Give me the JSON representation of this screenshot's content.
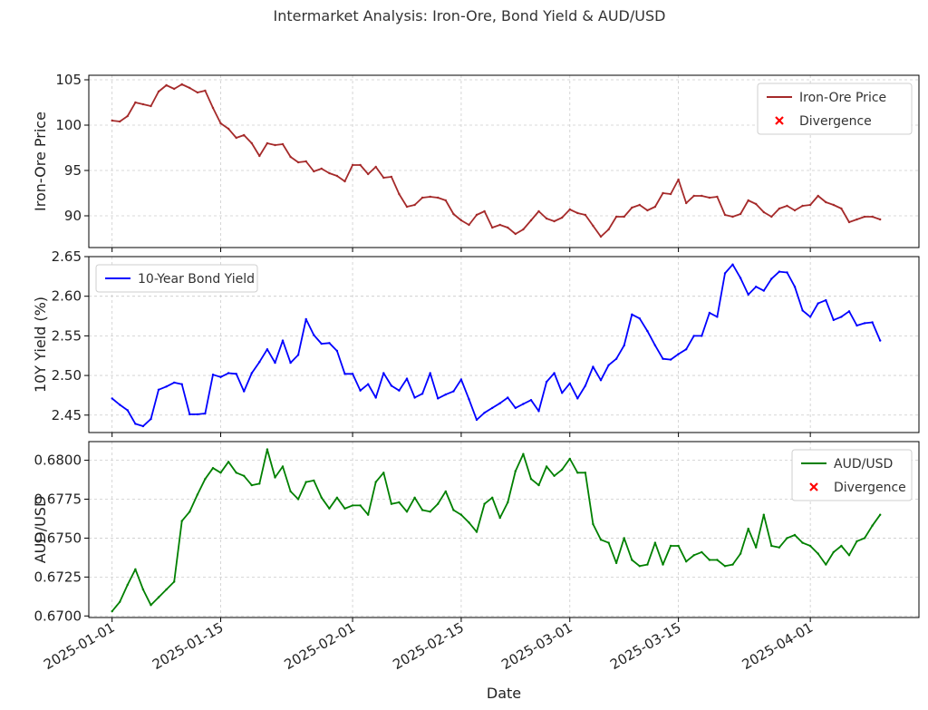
{
  "title": "Intermarket Analysis: Iron-Ore, Bond Yield & AUD/USD",
  "xlabel": "Date",
  "x_ticks": [
    "2025-01-01",
    "2025-01-15",
    "2025-02-01",
    "2025-02-15",
    "2025-03-01",
    "2025-03-15",
    "2025-04-01"
  ],
  "colors": {
    "iron": "#a52a2a",
    "bond": "#0000ff",
    "aud": "#008000",
    "divergence": "#ff0000"
  },
  "chart_data": [
    {
      "type": "line",
      "name": "iron",
      "ylabel": "Iron-Ore Price",
      "ylim": [
        86.5,
        105.5
      ],
      "yticks": [
        90,
        95,
        100,
        105
      ],
      "ytick_labels": [
        "90",
        "95",
        "100",
        "105"
      ],
      "legend": {
        "placement": "top-right",
        "line": "Iron-Ore Price",
        "marker": "Divergence"
      },
      "x_start": "2025-01-01",
      "x": [
        "2025-01-01",
        "2025-01-02",
        "2025-01-03",
        "2025-01-04",
        "2025-01-05",
        "2025-01-06",
        "2025-01-07",
        "2025-01-08",
        "2025-01-09",
        "2025-01-10",
        "2025-01-11",
        "2025-01-12",
        "2025-01-13",
        "2025-01-14",
        "2025-01-15",
        "2025-01-16",
        "2025-01-17",
        "2025-01-18",
        "2025-01-19",
        "2025-01-20",
        "2025-01-21",
        "2025-01-22",
        "2025-01-23",
        "2025-01-24",
        "2025-01-25",
        "2025-01-26",
        "2025-01-27",
        "2025-01-28",
        "2025-01-29",
        "2025-01-30",
        "2025-01-31",
        "2025-02-01",
        "2025-02-02",
        "2025-02-03",
        "2025-02-04",
        "2025-02-05",
        "2025-02-06",
        "2025-02-07",
        "2025-02-08",
        "2025-02-09",
        "2025-02-10",
        "2025-02-11",
        "2025-02-12",
        "2025-02-13",
        "2025-02-14",
        "2025-02-15",
        "2025-02-16",
        "2025-02-17",
        "2025-02-18",
        "2025-02-19",
        "2025-02-20",
        "2025-02-21",
        "2025-02-22",
        "2025-02-23",
        "2025-02-24",
        "2025-02-25",
        "2025-02-26",
        "2025-02-27",
        "2025-02-28",
        "2025-03-01",
        "2025-03-02",
        "2025-03-03",
        "2025-03-04",
        "2025-03-05",
        "2025-03-06",
        "2025-03-07",
        "2025-03-08",
        "2025-03-09",
        "2025-03-10",
        "2025-03-11",
        "2025-03-12",
        "2025-03-13",
        "2025-03-14",
        "2025-03-15",
        "2025-03-16",
        "2025-03-17",
        "2025-03-18",
        "2025-03-19",
        "2025-03-20",
        "2025-03-21",
        "2025-03-22",
        "2025-03-23",
        "2025-03-24",
        "2025-03-25",
        "2025-03-26",
        "2025-03-27",
        "2025-03-28",
        "2025-03-29",
        "2025-03-30",
        "2025-03-31",
        "2025-04-01",
        "2025-04-02",
        "2025-04-03",
        "2025-04-04",
        "2025-04-05",
        "2025-04-06",
        "2025-04-07",
        "2025-04-08",
        "2025-04-09",
        "2025-04-10"
      ],
      "values": [
        100.5,
        100.4,
        101.0,
        102.5,
        102.3,
        102.1,
        103.7,
        104.4,
        104.0,
        104.5,
        104.1,
        103.6,
        103.8,
        101.9,
        100.2,
        99.6,
        98.6,
        98.9,
        98.0,
        96.6,
        98.0,
        97.8,
        97.9,
        96.5,
        95.9,
        96.0,
        94.9,
        95.2,
        94.7,
        94.4,
        93.8,
        95.6,
        95.6,
        94.6,
        95.4,
        94.2,
        94.3,
        92.4,
        91.0,
        91.2,
        92.0,
        92.1,
        92.0,
        91.7,
        90.2,
        89.5,
        89.0,
        90.1,
        90.5,
        88.7,
        89.0,
        88.7,
        88.0,
        88.5,
        89.5,
        90.5,
        89.7,
        89.4,
        89.8,
        90.7,
        90.3,
        90.1,
        88.9,
        87.7,
        88.5,
        89.9,
        89.9,
        90.9,
        91.2,
        90.6,
        91.0,
        92.5,
        92.4,
        94.0,
        91.4,
        92.2,
        92.2,
        92.0,
        92.1,
        90.1,
        89.9,
        90.2,
        91.7,
        91.3,
        90.4,
        89.9,
        90.8,
        91.1,
        90.6,
        91.1,
        91.2,
        92.2,
        91.5,
        91.2,
        90.8,
        89.3,
        89.6,
        89.9,
        89.9,
        89.6
      ]
    },
    {
      "type": "line",
      "name": "bond",
      "ylabel": "10Y Yield (%)",
      "ylim": [
        2.428,
        2.65
      ],
      "yticks": [
        2.45,
        2.5,
        2.55,
        2.6,
        2.65
      ],
      "ytick_labels": [
        "2.45",
        "2.50",
        "2.55",
        "2.60",
        "2.65"
      ],
      "legend": {
        "placement": "top-left",
        "line": "10-Year Bond Yield"
      },
      "x_start": "2025-01-01",
      "x": [
        "2025-01-01",
        "2025-01-02",
        "2025-01-03",
        "2025-01-04",
        "2025-01-05",
        "2025-01-06",
        "2025-01-07",
        "2025-01-08",
        "2025-01-09",
        "2025-01-10",
        "2025-01-11",
        "2025-01-12",
        "2025-01-13",
        "2025-01-14",
        "2025-01-15",
        "2025-01-16",
        "2025-01-17",
        "2025-01-18",
        "2025-01-19",
        "2025-01-20",
        "2025-01-21",
        "2025-01-22",
        "2025-01-23",
        "2025-01-24",
        "2025-01-25",
        "2025-01-26",
        "2025-01-27",
        "2025-01-28",
        "2025-01-29",
        "2025-01-30",
        "2025-01-31",
        "2025-02-01",
        "2025-02-02",
        "2025-02-03",
        "2025-02-04",
        "2025-02-05",
        "2025-02-06",
        "2025-02-07",
        "2025-02-08",
        "2025-02-09",
        "2025-02-10",
        "2025-02-11",
        "2025-02-12",
        "2025-02-13",
        "2025-02-14",
        "2025-02-15",
        "2025-02-16",
        "2025-02-17",
        "2025-02-18",
        "2025-02-19",
        "2025-02-20",
        "2025-02-21",
        "2025-02-22",
        "2025-02-23",
        "2025-02-24",
        "2025-02-25",
        "2025-02-26",
        "2025-02-27",
        "2025-02-28",
        "2025-03-01",
        "2025-03-02",
        "2025-03-03",
        "2025-03-04",
        "2025-03-05",
        "2025-03-06",
        "2025-03-07",
        "2025-03-08",
        "2025-03-09",
        "2025-03-10",
        "2025-03-11",
        "2025-03-12",
        "2025-03-13",
        "2025-03-14",
        "2025-03-15",
        "2025-03-16",
        "2025-03-17",
        "2025-03-18",
        "2025-03-19",
        "2025-03-20",
        "2025-03-21",
        "2025-03-22",
        "2025-03-23",
        "2025-03-24",
        "2025-03-25",
        "2025-03-26",
        "2025-03-27",
        "2025-03-28",
        "2025-03-29",
        "2025-03-30",
        "2025-03-31",
        "2025-04-01",
        "2025-04-02",
        "2025-04-03",
        "2025-04-04",
        "2025-04-05",
        "2025-04-06",
        "2025-04-07",
        "2025-04-08",
        "2025-04-09",
        "2025-04-10"
      ],
      "values": [
        2.471,
        2.463,
        2.456,
        2.439,
        2.436,
        2.445,
        2.482,
        2.486,
        2.491,
        2.489,
        2.451,
        2.451,
        2.452,
        2.501,
        2.498,
        2.503,
        2.502,
        2.48,
        2.503,
        2.517,
        2.533,
        2.516,
        2.544,
        2.516,
        2.526,
        2.571,
        2.551,
        2.54,
        2.541,
        2.531,
        2.502,
        2.502,
        2.481,
        2.489,
        2.472,
        2.503,
        2.487,
        2.481,
        2.496,
        2.472,
        2.477,
        2.503,
        2.471,
        2.476,
        2.48,
        2.495,
        2.47,
        2.444,
        2.453,
        2.459,
        2.465,
        2.472,
        2.459,
        2.464,
        2.469,
        2.455,
        2.492,
        2.503,
        2.478,
        2.49,
        2.471,
        2.487,
        2.511,
        2.494,
        2.513,
        2.521,
        2.538,
        2.577,
        2.572,
        2.556,
        2.538,
        2.521,
        2.52,
        2.527,
        2.533,
        2.55,
        2.55,
        2.579,
        2.574,
        2.629,
        2.64,
        2.623,
        2.602,
        2.612,
        2.607,
        2.622,
        2.631,
        2.63,
        2.612,
        2.582,
        2.574,
        2.591,
        2.595,
        2.57,
        2.574,
        2.581,
        2.563,
        2.566,
        2.567,
        2.544
      ]
    },
    {
      "type": "line",
      "name": "aud",
      "ylabel": "AUD/USD",
      "ylim": [
        0.6699,
        0.6812
      ],
      "yticks": [
        0.67,
        0.6725,
        0.675,
        0.6775,
        0.68
      ],
      "ytick_labels": [
        "0.6700",
        "0.6725",
        "0.6750",
        "0.6775",
        "0.6800"
      ],
      "legend": {
        "placement": "top-right",
        "line": "AUD/USD",
        "marker": "Divergence"
      },
      "x_start": "2025-01-01",
      "x": [
        "2025-01-01",
        "2025-01-02",
        "2025-01-03",
        "2025-01-04",
        "2025-01-05",
        "2025-01-06",
        "2025-01-07",
        "2025-01-08",
        "2025-01-09",
        "2025-01-10",
        "2025-01-11",
        "2025-01-12",
        "2025-01-13",
        "2025-01-14",
        "2025-01-15",
        "2025-01-16",
        "2025-01-17",
        "2025-01-18",
        "2025-01-19",
        "2025-01-20",
        "2025-01-21",
        "2025-01-22",
        "2025-01-23",
        "2025-01-24",
        "2025-01-25",
        "2025-01-26",
        "2025-01-27",
        "2025-01-28",
        "2025-01-29",
        "2025-01-30",
        "2025-01-31",
        "2025-02-01",
        "2025-02-02",
        "2025-02-03",
        "2025-02-04",
        "2025-02-05",
        "2025-02-06",
        "2025-02-07",
        "2025-02-08",
        "2025-02-09",
        "2025-02-10",
        "2025-02-11",
        "2025-02-12",
        "2025-02-13",
        "2025-02-14",
        "2025-02-15",
        "2025-02-16",
        "2025-02-17",
        "2025-02-18",
        "2025-02-19",
        "2025-02-20",
        "2025-02-21",
        "2025-02-22",
        "2025-02-23",
        "2025-02-24",
        "2025-02-25",
        "2025-02-26",
        "2025-02-27",
        "2025-02-28",
        "2025-03-01",
        "2025-03-02",
        "2025-03-03",
        "2025-03-04",
        "2025-03-05",
        "2025-03-06",
        "2025-03-07",
        "2025-03-08",
        "2025-03-09",
        "2025-03-10",
        "2025-03-11",
        "2025-03-12",
        "2025-03-13",
        "2025-03-14",
        "2025-03-15",
        "2025-03-16",
        "2025-03-17",
        "2025-03-18",
        "2025-03-19",
        "2025-03-20",
        "2025-03-21",
        "2025-03-22",
        "2025-03-23",
        "2025-03-24",
        "2025-03-25",
        "2025-03-26",
        "2025-03-27",
        "2025-03-28",
        "2025-03-29",
        "2025-03-30",
        "2025-03-31",
        "2025-04-01",
        "2025-04-02",
        "2025-04-03",
        "2025-04-04",
        "2025-04-05",
        "2025-04-06",
        "2025-04-07",
        "2025-04-08",
        "2025-04-09",
        "2025-04-10"
      ],
      "values": [
        0.6703,
        0.6709,
        0.672,
        0.673,
        0.6717,
        0.6707,
        0.6712,
        0.6717,
        0.6722,
        0.6761,
        0.6767,
        0.6778,
        0.6788,
        0.6795,
        0.6792,
        0.6799,
        0.6792,
        0.679,
        0.6784,
        0.6785,
        0.6807,
        0.6789,
        0.6796,
        0.678,
        0.6775,
        0.6786,
        0.6787,
        0.6776,
        0.6769,
        0.6776,
        0.6769,
        0.6771,
        0.6771,
        0.6765,
        0.6786,
        0.6792,
        0.6772,
        0.6773,
        0.6767,
        0.6776,
        0.6768,
        0.6767,
        0.6772,
        0.678,
        0.6768,
        0.6765,
        0.676,
        0.6754,
        0.6772,
        0.6776,
        0.6763,
        0.6773,
        0.6793,
        0.6804,
        0.6788,
        0.6784,
        0.6796,
        0.679,
        0.6794,
        0.6801,
        0.6792,
        0.6792,
        0.6759,
        0.6749,
        0.6747,
        0.6734,
        0.675,
        0.6736,
        0.6732,
        0.6733,
        0.6747,
        0.6733,
        0.6745,
        0.6745,
        0.6735,
        0.6739,
        0.6741,
        0.6736,
        0.6736,
        0.6732,
        0.6733,
        0.674,
        0.6756,
        0.6744,
        0.6765,
        0.6745,
        0.6744,
        0.675,
        0.6752,
        0.6747,
        0.6745,
        0.674,
        0.6733,
        0.6741,
        0.6745,
        0.6739,
        0.6748,
        0.675,
        0.6758,
        0.6765
      ]
    }
  ]
}
